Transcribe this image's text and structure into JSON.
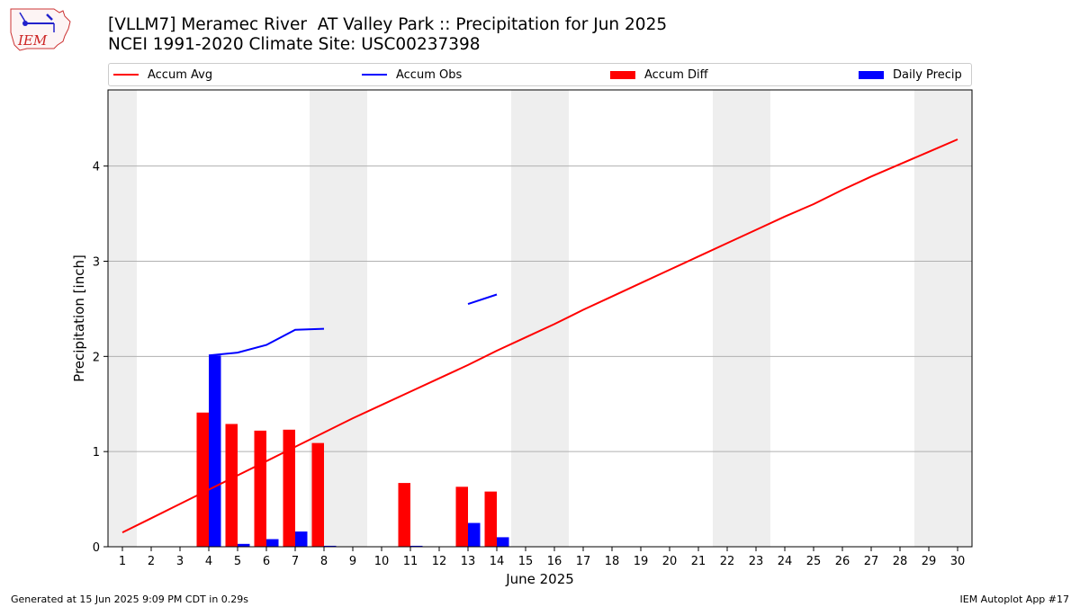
{
  "header": {
    "title": "[VLLM7] Meramec River  AT Valley Park :: Precipitation for Jun 2025",
    "subtitle": "NCEI 1991-2020 Climate Site: USC00237398",
    "logo_text": "IEM"
  },
  "legend": {
    "items": [
      {
        "label": "Accum Avg",
        "color": "#ff0000",
        "kind": "line"
      },
      {
        "label": "Accum Obs",
        "color": "#0000ff",
        "kind": "line"
      },
      {
        "label": "Accum Diff",
        "color": "#ff0000",
        "kind": "box"
      },
      {
        "label": "Daily Precip",
        "color": "#0000ff",
        "kind": "box"
      }
    ]
  },
  "footer": {
    "left": "Generated at 15 Jun 2025 9:09 PM CDT in 0.29s",
    "right": "IEM Autoplot App #17"
  },
  "chart_data": {
    "type": "bar",
    "xlabel": "June 2025",
    "ylabel": "Precipitation [inch]",
    "xlim": [
      0.5,
      30.5
    ],
    "ylim": [
      0,
      4.8
    ],
    "yticks": [
      0,
      1,
      2,
      3,
      4
    ],
    "x": [
      1,
      2,
      3,
      4,
      5,
      6,
      7,
      8,
      9,
      10,
      11,
      12,
      13,
      14,
      15,
      16,
      17,
      18,
      19,
      20,
      21,
      22,
      23,
      24,
      25,
      26,
      27,
      28,
      29,
      30
    ],
    "grid": "horizontal",
    "weekend_shading": [
      [
        0.5,
        1.5
      ],
      [
        7.5,
        9.5
      ],
      [
        14.5,
        16.5
      ],
      [
        21.5,
        23.5
      ],
      [
        28.5,
        30.5
      ]
    ],
    "shade_color": "#eeeeee",
    "series": [
      {
        "name": "Accum Avg",
        "type": "line",
        "color": "#ff0000",
        "values": [
          0.15,
          0.3,
          0.45,
          0.6,
          0.75,
          0.9,
          1.05,
          1.2,
          1.35,
          1.49,
          1.63,
          1.77,
          1.91,
          2.06,
          2.2,
          2.34,
          2.49,
          2.63,
          2.77,
          2.91,
          3.05,
          3.19,
          3.33,
          3.47,
          3.6,
          3.75,
          3.89,
          4.02,
          4.15,
          4.28
        ]
      },
      {
        "name": "Accum Obs",
        "type": "line",
        "color": "#0000ff",
        "values": [
          null,
          null,
          null,
          2.01,
          2.04,
          2.12,
          2.28,
          2.29,
          null,
          null,
          null,
          null,
          2.55,
          2.65,
          null,
          null,
          null,
          null,
          null,
          null,
          null,
          null,
          null,
          null,
          null,
          null,
          null,
          null,
          null,
          null
        ]
      },
      {
        "name": "Accum Diff",
        "type": "bar",
        "color": "#ff0000",
        "values": [
          0,
          0,
          0,
          1.41,
          1.29,
          1.22,
          1.23,
          1.09,
          0,
          0,
          0.67,
          0,
          0.63,
          0.58,
          0,
          0,
          0,
          0,
          0,
          0,
          0,
          0,
          0,
          0,
          0,
          0,
          0,
          0,
          0,
          0
        ]
      },
      {
        "name": "Daily Precip",
        "type": "bar",
        "color": "#0000ff",
        "values": [
          0,
          0,
          0,
          2.01,
          0.03,
          0.08,
          0.16,
          0.01,
          0,
          0,
          0.01,
          0,
          0.25,
          0.1,
          0,
          0,
          0,
          0,
          0,
          0,
          0,
          0,
          0,
          0,
          0,
          0,
          0,
          0,
          0,
          0
        ]
      }
    ]
  }
}
